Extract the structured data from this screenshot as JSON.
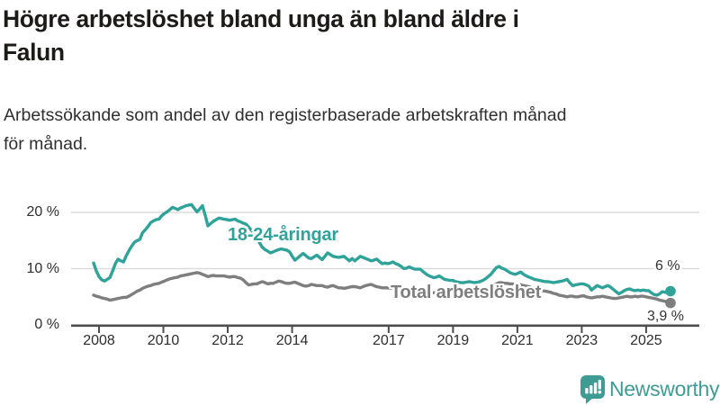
{
  "header": {
    "title_lines": [
      "Högre arbetslöshet bland unga än bland äldre i",
      "Falun"
    ],
    "subtitle_lines": [
      "Arbetssökande som andel av den registerbaserade arbetskraften månad",
      "för månad."
    ]
  },
  "footer": {
    "brand": "Newsworthy",
    "logo_icon": "newsworthy-speech-bubble-bar-chart-icon"
  },
  "colors": {
    "background": "#FFFFFF",
    "title_text": "#1C1B17",
    "subtitle_text": "#2F2F2F",
    "axis_text": "#2E2E2E",
    "axis_line": "#4D4D4D",
    "gridline": "#DCDCDC",
    "accent_teal": "#2FA39A",
    "series_gray": "#7E7E7E",
    "end_label_text": "#333333",
    "logo_teal": "#3E9C94"
  },
  "chart_data": {
    "type": "line",
    "title": "Högre arbetslöshet bland unga än bland äldre i Falun",
    "subtitle": "Arbetssökande som andel av den registerbaserade arbetskraften månad för månad.",
    "frequency": "monthly",
    "x_start": "2008-01",
    "x_end": "2025-09",
    "ylim": [
      0,
      23
    ],
    "grid": "horizontal",
    "legend_position": "inline-labels",
    "y_ticks": [
      {
        "value": 0,
        "label": "0 %"
      },
      {
        "value": 10,
        "label": "10 %"
      },
      {
        "value": 20,
        "label": "20 %"
      }
    ],
    "x_ticks": [
      {
        "year": 2008,
        "label": "2008"
      },
      {
        "year": 2010,
        "label": "2010"
      },
      {
        "year": 2012,
        "label": "2012"
      },
      {
        "year": 2014,
        "label": "2014"
      },
      {
        "year": 2017,
        "label": "2017"
      },
      {
        "year": 2019,
        "label": "2019"
      },
      {
        "year": 2021,
        "label": "2021"
      },
      {
        "year": 2023,
        "label": "2023"
      },
      {
        "year": 2025,
        "label": "2025"
      }
    ],
    "series": [
      {
        "name": "Total arbetslöshet",
        "color": "#7E7E7E",
        "end_value": 3.9,
        "end_label": "3,9 %",
        "values": [
          5.3,
          5.1,
          5.0,
          4.8,
          4.7,
          4.6,
          4.4,
          4.5,
          4.6,
          4.7,
          4.8,
          4.9,
          4.9,
          5.1,
          5.4,
          5.7,
          6.0,
          6.2,
          6.5,
          6.7,
          6.9,
          7.0,
          7.2,
          7.3,
          7.4,
          7.6,
          7.8,
          8.0,
          8.2,
          8.3,
          8.4,
          8.5,
          8.7,
          8.8,
          8.9,
          9.0,
          9.1,
          9.2,
          9.3,
          9.2,
          9.0,
          8.8,
          8.6,
          8.7,
          8.8,
          8.7,
          8.7,
          8.7,
          8.7,
          8.6,
          8.5,
          8.6,
          8.6,
          8.4,
          8.3,
          8.0,
          7.5,
          7.1,
          7.2,
          7.3,
          7.3,
          7.5,
          7.7,
          7.5,
          7.3,
          7.4,
          7.4,
          7.6,
          7.8,
          7.7,
          7.5,
          7.4,
          7.4,
          7.5,
          7.6,
          7.4,
          7.2,
          7.0,
          6.9,
          7.0,
          7.2,
          7.1,
          7.0,
          7.0,
          7.0,
          6.8,
          6.7,
          6.9,
          7.0,
          6.8,
          6.6,
          6.6,
          6.5,
          6.6,
          6.7,
          6.8,
          6.8,
          6.7,
          6.6,
          6.8,
          7.0,
          7.1,
          7.2,
          7.0,
          6.8,
          6.7,
          6.6,
          6.6,
          6.6,
          6.5,
          6.5,
          6.4,
          6.4,
          6.3,
          6.2,
          6.2,
          6.1,
          6.1,
          6.0,
          6.0,
          6.0,
          5.9,
          5.9,
          5.8,
          5.8,
          5.7,
          5.7,
          5.6,
          5.6,
          5.5,
          5.5,
          5.5,
          5.5,
          5.5,
          5.4,
          5.4,
          5.5,
          5.5,
          5.6,
          5.6,
          5.7,
          5.7,
          5.8,
          5.9,
          6.0,
          6.2,
          6.6,
          7.0,
          7.3,
          7.5,
          7.5,
          7.4,
          7.4,
          7.3,
          7.3,
          7.2,
          7.2,
          7.1,
          7.0,
          6.9,
          6.8,
          6.6,
          6.5,
          6.3,
          6.2,
          6.1,
          6.0,
          5.9,
          5.8,
          5.6,
          5.5,
          5.3,
          5.2,
          5.1,
          5.0,
          5.1,
          5.1,
          5.0,
          5.0,
          5.1,
          5.2,
          5.0,
          4.9,
          4.8,
          4.9,
          5.0,
          5.0,
          5.1,
          5.0,
          4.9,
          4.8,
          4.7,
          4.7,
          4.8,
          4.9,
          5.0,
          5.1,
          5.0,
          5.0,
          5.1,
          5.0,
          5.1,
          5.1,
          5.0,
          4.9,
          4.8,
          4.7,
          4.6,
          4.4,
          4.3,
          4.2,
          4.1,
          3.9
        ]
      },
      {
        "name": "18-24-åringar",
        "color": "#2FA39A",
        "end_value": 6.0,
        "end_label": "6 %",
        "values": [
          11.0,
          9.6,
          8.6,
          8.0,
          7.8,
          8.1,
          8.4,
          9.6,
          10.9,
          11.7,
          11.4,
          11.2,
          12.3,
          13.2,
          14.0,
          14.7,
          15.0,
          15.2,
          16.4,
          16.9,
          17.5,
          18.2,
          18.5,
          18.7,
          18.8,
          19.4,
          19.8,
          20.1,
          20.5,
          20.9,
          20.7,
          20.5,
          20.8,
          21.0,
          21.2,
          21.3,
          21.4,
          20.7,
          20.1,
          20.6,
          21.2,
          19.5,
          17.6,
          18.0,
          18.4,
          18.7,
          19.0,
          18.9,
          18.8,
          18.7,
          18.6,
          18.7,
          18.8,
          18.5,
          18.3,
          18.1,
          17.9,
          17.4,
          16.8,
          16.3,
          15.6,
          14.6,
          13.8,
          13.4,
          13.1,
          12.8,
          13.0,
          13.2,
          13.4,
          13.5,
          13.4,
          13.3,
          13.0,
          12.2,
          11.5,
          11.9,
          12.3,
          12.7,
          12.3,
          11.9,
          11.8,
          12.1,
          12.4,
          12.0,
          11.6,
          12.2,
          12.8,
          12.5,
          12.2,
          12.1,
          12.0,
          12.1,
          12.2,
          11.8,
          11.4,
          11.8,
          11.4,
          11.8,
          12.2,
          12.0,
          11.8,
          11.6,
          11.4,
          11.5,
          11.7,
          11.3,
          10.9,
          11.0,
          10.9,
          11.0,
          11.2,
          10.9,
          10.7,
          10.4,
          10.0,
          10.1,
          10.3,
          10.1,
          9.9,
          9.9,
          9.9,
          9.5,
          9.1,
          8.8,
          8.6,
          8.4,
          8.5,
          8.7,
          8.4,
          8.1,
          8.0,
          7.9,
          7.9,
          7.7,
          7.6,
          7.5,
          7.5,
          7.6,
          7.7,
          7.6,
          7.5,
          7.6,
          7.7,
          7.9,
          8.2,
          8.6,
          9.0,
          9.6,
          10.2,
          10.4,
          10.1,
          9.9,
          9.6,
          9.3,
          9.1,
          9.0,
          9.2,
          9.4,
          9.0,
          8.7,
          8.5,
          8.3,
          8.1,
          8.0,
          7.9,
          7.8,
          7.7,
          7.7,
          7.6,
          7.5,
          7.6,
          7.7,
          7.8,
          7.9,
          8.1,
          7.5,
          7.0,
          7.1,
          7.2,
          7.3,
          7.3,
          7.1,
          6.9,
          6.2,
          6.6,
          7.0,
          6.8,
          6.6,
          6.8,
          7.0,
          6.7,
          6.3,
          5.9,
          5.5,
          5.8,
          6.1,
          6.3,
          6.4,
          6.2,
          6.1,
          6.2,
          6.1,
          6.2,
          6.1,
          6.1,
          5.7,
          5.4,
          5.3,
          5.5,
          5.9,
          5.8,
          5.9,
          6.0
        ]
      }
    ]
  }
}
